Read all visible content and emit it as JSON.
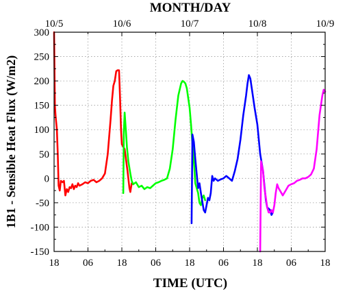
{
  "chart_data": {
    "type": "line",
    "top_axis_title": "MONTH/DAY",
    "xlabel": "TIME (UTC)",
    "ylabel": "1B1 - Sensible Heat Flux (W/m2)",
    "x_unit": "hours since 10/4 18 UTC",
    "xlim": [
      0,
      96
    ],
    "ylim": [
      -150,
      300
    ],
    "y_ticks": [
      -150,
      -100,
      -50,
      0,
      50,
      100,
      150,
      200,
      250,
      300
    ],
    "bottom_ticks": [
      {
        "x": 0,
        "label": "18"
      },
      {
        "x": 12,
        "label": "06"
      },
      {
        "x": 24,
        "label": "18"
      },
      {
        "x": 36,
        "label": "06"
      },
      {
        "x": 48,
        "label": "18"
      },
      {
        "x": 60,
        "label": "06"
      },
      {
        "x": 72,
        "label": "18"
      },
      {
        "x": 84,
        "label": "06"
      },
      {
        "x": 96,
        "label": "18"
      }
    ],
    "top_ticks": [
      {
        "x": 0,
        "label": "10/5"
      },
      {
        "x": 24,
        "label": "10/6"
      },
      {
        "x": 48,
        "label": "10/7"
      },
      {
        "x": 72,
        "label": "10/8"
      },
      {
        "x": 96,
        "label": "10/9"
      }
    ],
    "grid": true,
    "series": [
      {
        "color": "#ff0000",
        "points": [
          [
            0,
            300
          ],
          [
            0.3,
            150
          ],
          [
            0.5,
            130
          ],
          [
            1,
            100
          ],
          [
            1.3,
            50
          ],
          [
            1.6,
            -15
          ],
          [
            2,
            -25
          ],
          [
            2.4,
            -5
          ],
          [
            3,
            -8
          ],
          [
            3.5,
            -5
          ],
          [
            4,
            -35
          ],
          [
            4.5,
            -22
          ],
          [
            5,
            -28
          ],
          [
            5.5,
            -18
          ],
          [
            6,
            -20
          ],
          [
            6.5,
            -12
          ],
          [
            7,
            -22
          ],
          [
            7.5,
            -15
          ],
          [
            8,
            -18
          ],
          [
            8.5,
            -10
          ],
          [
            9,
            -15
          ],
          [
            10,
            -12
          ],
          [
            11,
            -8
          ],
          [
            12,
            -10
          ],
          [
            13,
            -5
          ],
          [
            14,
            -3
          ],
          [
            15,
            -8
          ],
          [
            16,
            -5
          ],
          [
            17,
            0
          ],
          [
            18,
            10
          ],
          [
            19,
            50
          ],
          [
            20,
            120
          ],
          [
            20.5,
            160
          ],
          [
            21,
            190
          ],
          [
            21.5,
            200
          ],
          [
            22,
            220
          ],
          [
            22.5,
            222
          ],
          [
            23,
            222
          ],
          [
            23.4,
            160
          ],
          [
            23.7,
            100
          ],
          [
            24,
            70
          ],
          [
            25,
            60
          ],
          [
            26,
            15
          ],
          [
            26.7,
            -20
          ],
          [
            27,
            -28
          ],
          [
            27.5,
            -10
          ],
          [
            28,
            -12
          ]
        ]
      },
      {
        "color": "#00ff00",
        "points": [
          [
            24.5,
            -30
          ],
          [
            24.7,
            95
          ],
          [
            25,
            135
          ],
          [
            25.4,
            100
          ],
          [
            25.8,
            65
          ],
          [
            26.3,
            35
          ],
          [
            27,
            10
          ],
          [
            27.5,
            -5
          ],
          [
            28,
            -12
          ],
          [
            29,
            -8
          ],
          [
            30,
            -18
          ],
          [
            31,
            -15
          ],
          [
            32,
            -22
          ],
          [
            33,
            -18
          ],
          [
            34,
            -20
          ],
          [
            35,
            -15
          ],
          [
            36,
            -10
          ],
          [
            37,
            -8
          ],
          [
            38,
            -5
          ],
          [
            39,
            -3
          ],
          [
            40,
            0
          ],
          [
            41,
            20
          ],
          [
            42,
            60
          ],
          [
            43,
            120
          ],
          [
            44,
            170
          ],
          [
            45,
            195
          ],
          [
            45.5,
            200
          ],
          [
            46,
            198
          ],
          [
            46.5,
            195
          ],
          [
            47,
            185
          ],
          [
            48,
            145
          ],
          [
            48.5,
            110
          ],
          [
            49,
            70
          ],
          [
            49.7,
            20
          ],
          [
            50,
            -10
          ],
          [
            51,
            -30
          ],
          [
            51.5,
            -50
          ],
          [
            52,
            -55
          ],
          [
            52.5,
            -40
          ],
          [
            53,
            -35
          ],
          [
            53.5,
            -45
          ]
        ]
      },
      {
        "color": "#0000ff",
        "points": [
          [
            48.7,
            -92
          ],
          [
            49,
            90
          ],
          [
            49.5,
            75
          ],
          [
            50,
            40
          ],
          [
            50.5,
            10
          ],
          [
            51,
            -20
          ],
          [
            51.5,
            -10
          ],
          [
            52,
            -30
          ],
          [
            53,
            -65
          ],
          [
            53.5,
            -70
          ],
          [
            54,
            -55
          ],
          [
            54.5,
            -40
          ],
          [
            55,
            -45
          ],
          [
            55.5,
            -30
          ],
          [
            56,
            5
          ],
          [
            56.5,
            -5
          ],
          [
            57,
            0
          ],
          [
            58,
            -5
          ],
          [
            59,
            -2
          ],
          [
            60,
            0
          ],
          [
            61,
            5
          ],
          [
            62,
            0
          ],
          [
            63,
            -5
          ],
          [
            64,
            15
          ],
          [
            65,
            40
          ],
          [
            66,
            80
          ],
          [
            67,
            130
          ],
          [
            68,
            170
          ],
          [
            68.5,
            195
          ],
          [
            69,
            212
          ],
          [
            69.5,
            205
          ],
          [
            70,
            185
          ],
          [
            71,
            145
          ],
          [
            72,
            110
          ],
          [
            73,
            50
          ],
          [
            74,
            15
          ],
          [
            74.5,
            -15
          ],
          [
            75,
            -45
          ],
          [
            75.5,
            -60
          ],
          [
            76,
            -62
          ],
          [
            76.5,
            -65
          ],
          [
            77,
            -75
          ],
          [
            77.5,
            -70
          ]
        ]
      },
      {
        "color": "#ff00ff",
        "points": [
          [
            73,
            -150
          ],
          [
            73.3,
            35
          ],
          [
            74,
            15
          ],
          [
            74.5,
            -20
          ],
          [
            75,
            -40
          ],
          [
            75.5,
            -60
          ],
          [
            76,
            -70
          ],
          [
            76.5,
            -70
          ],
          [
            77,
            -65
          ],
          [
            77.5,
            -70
          ],
          [
            78,
            -55
          ],
          [
            78.5,
            -30
          ],
          [
            79,
            -12
          ],
          [
            79.5,
            -20
          ],
          [
            80,
            -25
          ],
          [
            81,
            -35
          ],
          [
            82,
            -25
          ],
          [
            83,
            -15
          ],
          [
            84,
            -12
          ],
          [
            85,
            -10
          ],
          [
            86,
            -5
          ],
          [
            87,
            -3
          ],
          [
            88,
            0
          ],
          [
            89,
            0
          ],
          [
            90,
            3
          ],
          [
            91,
            8
          ],
          [
            92,
            20
          ],
          [
            93,
            60
          ],
          [
            94,
            130
          ],
          [
            95,
            170
          ],
          [
            95.5,
            182
          ],
          [
            96,
            178
          ]
        ]
      }
    ]
  }
}
